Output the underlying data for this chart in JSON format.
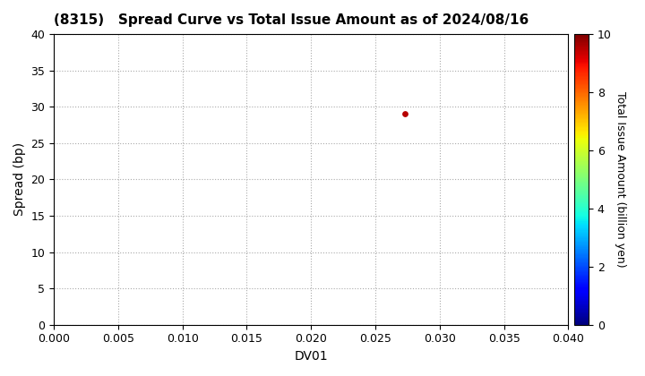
{
  "title": "(8315)   Spread Curve vs Total Issue Amount as of 2024/08/16",
  "xlabel": "DV01",
  "ylabel": "Spread (bp)",
  "colorbar_label": "Total Issue Amount (billion yen)",
  "xlim": [
    0.0,
    0.04
  ],
  "ylim": [
    0,
    40
  ],
  "xticks": [
    0.0,
    0.005,
    0.01,
    0.015,
    0.02,
    0.025,
    0.03,
    0.035,
    0.04
  ],
  "yticks": [
    0,
    5,
    10,
    15,
    20,
    25,
    30,
    35,
    40
  ],
  "colorbar_ticks": [
    0,
    2,
    4,
    6,
    8,
    10
  ],
  "colorbar_lim": [
    0,
    10
  ],
  "scatter_x": [
    0.0273
  ],
  "scatter_y": [
    29.0
  ],
  "scatter_color_value": [
    9.5
  ],
  "point_size": 15,
  "background_color": "#ffffff",
  "grid_color": "#aaaaaa",
  "title_fontsize": 11,
  "axis_fontsize": 10,
  "tick_fontsize": 9,
  "colorbar_fontsize": 9
}
